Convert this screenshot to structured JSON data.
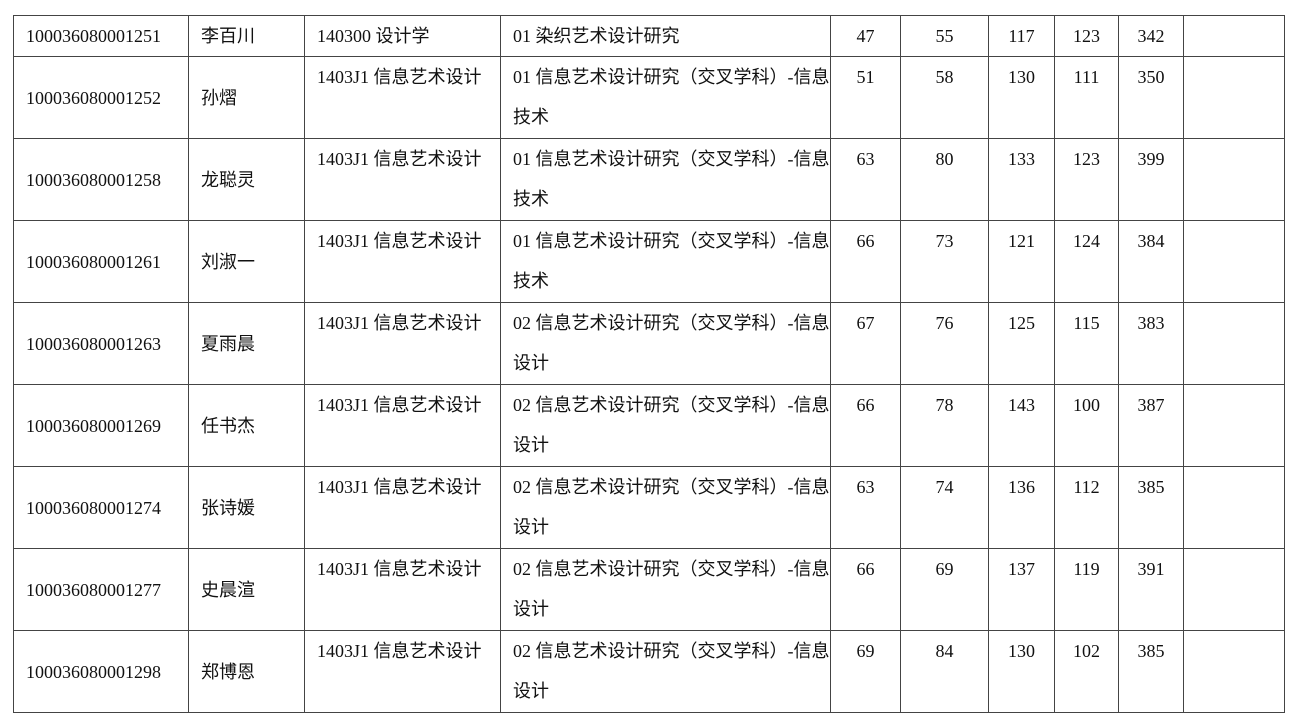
{
  "rows": [
    {
      "id": "100036080001251",
      "name": "李百川",
      "major": "140300 设计学",
      "direction": "01 染织艺术设计研究",
      "s1": "47",
      "s2": "55",
      "s3": "117",
      "s4": "123",
      "total": "342",
      "note": ""
    },
    {
      "id": "100036080001252",
      "name": "孙熠",
      "major": "1403J1 信息艺术设计",
      "direction": "01 信息艺术设计研究（交叉学科）-信息技术",
      "s1": "51",
      "s2": "58",
      "s3": "130",
      "s4": "111",
      "total": "350",
      "note": ""
    },
    {
      "id": "100036080001258",
      "name": "龙聪灵",
      "major": "1403J1 信息艺术设计",
      "direction": "01 信息艺术设计研究（交叉学科）-信息技术",
      "s1": "63",
      "s2": "80",
      "s3": "133",
      "s4": "123",
      "total": "399",
      "note": ""
    },
    {
      "id": "100036080001261",
      "name": "刘淑一",
      "major": "1403J1 信息艺术设计",
      "direction": "01 信息艺术设计研究（交叉学科）-信息技术",
      "s1": "66",
      "s2": "73",
      "s3": "121",
      "s4": "124",
      "total": "384",
      "note": ""
    },
    {
      "id": "100036080001263",
      "name": "夏雨晨",
      "major": "1403J1 信息艺术设计",
      "direction": "02 信息艺术设计研究（交叉学科）-信息设计",
      "s1": "67",
      "s2": "76",
      "s3": "125",
      "s4": "115",
      "total": "383",
      "note": ""
    },
    {
      "id": "100036080001269",
      "name": "任书杰",
      "major": "1403J1 信息艺术设计",
      "direction": "02 信息艺术设计研究（交叉学科）-信息设计",
      "s1": "66",
      "s2": "78",
      "s3": "143",
      "s4": "100",
      "total": "387",
      "note": ""
    },
    {
      "id": "100036080001274",
      "name": "张诗媛",
      "major": "1403J1 信息艺术设计",
      "direction": "02 信息艺术设计研究（交叉学科）-信息设计",
      "s1": "63",
      "s2": "74",
      "s3": "136",
      "s4": "112",
      "total": "385",
      "note": ""
    },
    {
      "id": "100036080001277",
      "name": "史晨渲",
      "major": "1403J1 信息艺术设计",
      "direction": "02 信息艺术设计研究（交叉学科）-信息设计",
      "s1": "66",
      "s2": "69",
      "s3": "137",
      "s4": "119",
      "total": "391",
      "note": ""
    },
    {
      "id": "100036080001298",
      "name": "郑博恩",
      "major": "1403J1 信息艺术设计",
      "direction": "02 信息艺术设计研究（交叉学科）-信息设计",
      "s1": "69",
      "s2": "84",
      "s3": "130",
      "s4": "102",
      "total": "385",
      "note": ""
    }
  ]
}
